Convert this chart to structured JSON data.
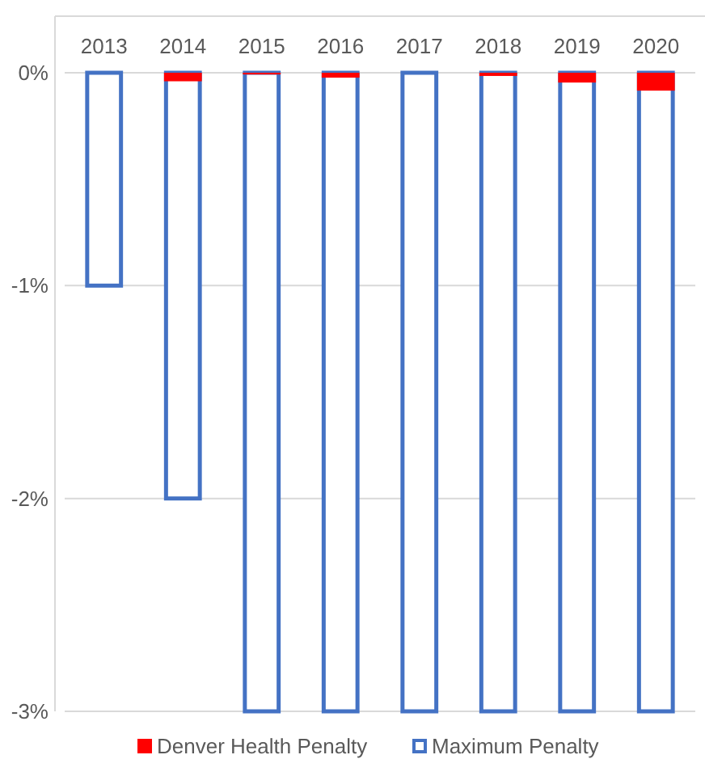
{
  "chart_data": {
    "type": "bar",
    "categories": [
      "2013",
      "2014",
      "2015",
      "2016",
      "2017",
      "2018",
      "2019",
      "2020"
    ],
    "series": [
      {
        "name": "Denver Health Penalty",
        "color": "#ff0000",
        "values": [
          0,
          -0.04,
          -0.008,
          -0.023,
          0,
          -0.015,
          -0.046,
          -0.084
        ]
      },
      {
        "name": "Maximum Penalty",
        "color": "#4472c4",
        "values": [
          -1,
          -2,
          -3,
          -3,
          -3,
          -3,
          -3,
          -3
        ]
      }
    ],
    "ylim": [
      -3,
      0
    ],
    "yticks": [
      {
        "value": -3,
        "label": "-3%"
      },
      {
        "value": -2,
        "label": "-2%"
      },
      {
        "value": -1,
        "label": "-1%"
      },
      {
        "value": 0,
        "label": "0%"
      }
    ],
    "grid": "y",
    "legend": "bottom"
  }
}
